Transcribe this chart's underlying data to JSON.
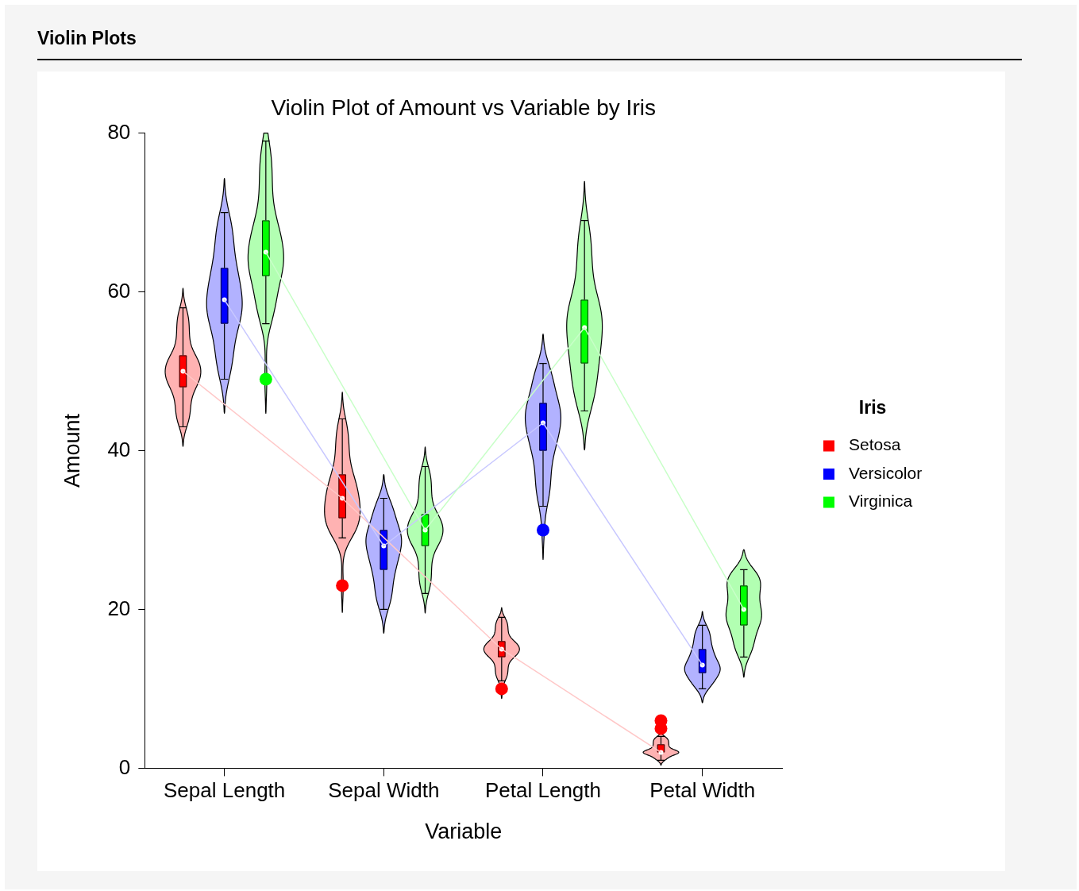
{
  "chart_data": {
    "type": "box",
    "title": "Violin Plots",
    "subtitle": "Violin Plot of Amount vs Variable by Iris",
    "xlabel": "Variable",
    "ylabel": "Amount",
    "legend_title": "Iris",
    "legend": "right",
    "categories": [
      "Sepal Length",
      "Sepal Width",
      "Petal Length",
      "Petal Width"
    ],
    "ylim": [
      0,
      80
    ],
    "yticks": [
      0,
      20,
      40,
      60,
      80
    ],
    "series": [
      {
        "name": "Setosa",
        "color": "#ff0000",
        "boxes": [
          {
            "low": 43,
            "q1": 48,
            "median": 50,
            "q3": 52,
            "high": 58
          },
          {
            "low": 29,
            "q1": 31.5,
            "median": 34,
            "q3": 37,
            "high": 44,
            "outliers": [
              23
            ]
          },
          {
            "low": 11,
            "q1": 14,
            "median": 15,
            "q3": 16,
            "high": 19,
            "outliers": [
              10
            ]
          },
          {
            "low": 1,
            "q1": 2,
            "median": 2,
            "q3": 3,
            "high": 4,
            "outliers": [
              5,
              6
            ]
          }
        ]
      },
      {
        "name": "Versicolor",
        "color": "#0000ff",
        "boxes": [
          {
            "low": 49,
            "q1": 56,
            "median": 59,
            "q3": 63,
            "high": 70
          },
          {
            "low": 20,
            "q1": 25,
            "median": 28,
            "q3": 30,
            "high": 34
          },
          {
            "low": 33,
            "q1": 40,
            "median": 43.5,
            "q3": 46,
            "high": 51,
            "outliers": [
              30
            ]
          },
          {
            "low": 10,
            "q1": 12,
            "median": 13,
            "q3": 15,
            "high": 18
          }
        ]
      },
      {
        "name": "Virginica",
        "color": "#00ff00",
        "boxes": [
          {
            "low": 56,
            "q1": 62,
            "median": 65,
            "q3": 69,
            "high": 79,
            "outliers": [
              49
            ]
          },
          {
            "low": 22,
            "q1": 28,
            "median": 30,
            "q3": 32,
            "high": 38
          },
          {
            "low": 45,
            "q1": 51,
            "median": 55.5,
            "q3": 59,
            "high": 69
          },
          {
            "low": 14,
            "q1": 18,
            "median": 20,
            "q3": 23,
            "high": 25
          }
        ]
      },
      {
        "type": "line",
        "color": "#ffc8c8",
        "values": [
          50,
          34,
          15,
          2
        ]
      },
      {
        "type": "line",
        "color": "#c8c8ff",
        "values": [
          59,
          28,
          43.5,
          13
        ]
      },
      {
        "type": "line",
        "color": "#c8ffc8",
        "values": [
          65,
          30,
          55.5,
          20
        ]
      }
    ]
  }
}
